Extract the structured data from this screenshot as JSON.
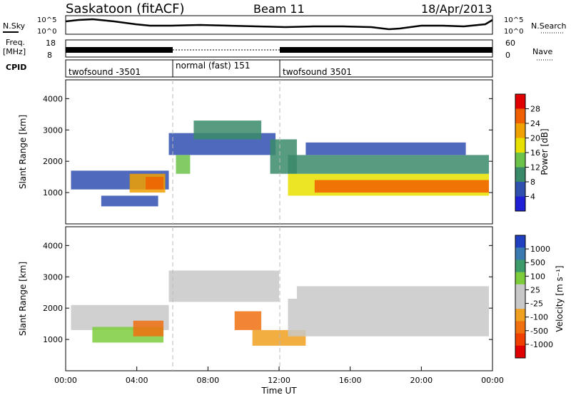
{
  "header": {
    "station": "Saskatoon (fitACF)",
    "beam": "Beam 11",
    "date": "18/Apr/2013"
  },
  "strips": {
    "nsky_label": "N.Sky",
    "nsky_ticks": [
      "10^5",
      "10^0"
    ],
    "nsearch_label": "N.Search",
    "nsearch_ticks": [
      "10^5",
      "10^0"
    ],
    "freq_label_1": "Freq.",
    "freq_label_2": "[MHz]",
    "freq_ticks": [
      "18",
      "8"
    ],
    "nave_label": "Nave",
    "nave_ticks": [
      "60",
      "0"
    ],
    "cpid_label": "CPID",
    "cpid_segments": [
      {
        "label": "twofsound -3501",
        "start": 0,
        "end": 6
      },
      {
        "label": "normal (fast) 151",
        "start": 6,
        "end": 12
      },
      {
        "label": "twofsound 3501",
        "start": 12,
        "end": 24
      }
    ]
  },
  "colors": {
    "power_scale": [
      "#1f1fd6",
      "#3050b0",
      "#3a8a6a",
      "#6cc24a",
      "#e8e000",
      "#f0a000",
      "#f06000",
      "#e00000"
    ],
    "velocity_scale": [
      "#2040c0",
      "#3a7ab0",
      "#3d9a6a",
      "#7ccc3c",
      "#c8c8c8",
      "#c8c8c8",
      "#f0a020",
      "#f07010",
      "#f04000",
      "#e00000"
    ]
  },
  "chart_data": [
    {
      "type": "heatmap",
      "panel": "power",
      "ylabel": "Slant Range [km]",
      "ylim": [
        0,
        4600
      ],
      "yticks": [
        "1000",
        "2000",
        "3000",
        "4000"
      ],
      "xlim": [
        0,
        24
      ],
      "colorbar_label": "Power [dB]",
      "colorbar_ticks": [
        "4",
        "8",
        "12",
        "16",
        "20",
        "24",
        "28"
      ],
      "bands": [
        {
          "x0": 0.3,
          "x1": 5.8,
          "y0": 1100,
          "y1": 1700,
          "value": 8
        },
        {
          "x0": 2.0,
          "x1": 5.2,
          "y0": 560,
          "y1": 900,
          "value": 8
        },
        {
          "x0": 3.6,
          "x1": 5.6,
          "y0": 1000,
          "y1": 1600,
          "value": 22
        },
        {
          "x0": 4.5,
          "x1": 5.5,
          "y0": 1100,
          "y1": 1500,
          "value": 28
        },
        {
          "x0": 5.8,
          "x1": 11.8,
          "y0": 2200,
          "y1": 2900,
          "value": 8
        },
        {
          "x0": 7.2,
          "x1": 11.0,
          "y0": 2700,
          "y1": 3300,
          "value": 10
        },
        {
          "x0": 6.2,
          "x1": 7.0,
          "y0": 1600,
          "y1": 2200,
          "value": 16
        },
        {
          "x0": 11.5,
          "x1": 13.0,
          "y0": 1600,
          "y1": 2700,
          "value": 10
        },
        {
          "x0": 12.5,
          "x1": 23.8,
          "y0": 900,
          "y1": 1600,
          "value": 20
        },
        {
          "x0": 14.0,
          "x1": 23.8,
          "y0": 1000,
          "y1": 1400,
          "value": 27
        },
        {
          "x0": 12.5,
          "x1": 23.8,
          "y0": 1600,
          "y1": 2200,
          "value": 12
        },
        {
          "x0": 13.5,
          "x1": 22.5,
          "y0": 2200,
          "y1": 2600,
          "value": 8
        }
      ]
    },
    {
      "type": "heatmap",
      "panel": "velocity",
      "ylabel": "Slant Range [km]",
      "ylim": [
        0,
        4600
      ],
      "yticks": [
        "1000",
        "2000",
        "3000",
        "4000"
      ],
      "xlim": [
        0,
        24
      ],
      "xticks": [
        "00:00",
        "04:00",
        "08:00",
        "12:00",
        "16:00",
        "20:00",
        "00:00"
      ],
      "xlabel": "Time UT",
      "colorbar_label": "Velocity [m s⁻¹]",
      "colorbar_ticks": [
        "1000",
        "500",
        "100",
        "25",
        "-25",
        "-100",
        "-500",
        "-1000"
      ],
      "bands": [
        {
          "x0": 0.3,
          "x1": 5.8,
          "y0": 1300,
          "y1": 2100,
          "value": 0
        },
        {
          "x0": 1.5,
          "x1": 5.5,
          "y0": 900,
          "y1": 1400,
          "value": 50
        },
        {
          "x0": 3.8,
          "x1": 5.5,
          "y0": 1100,
          "y1": 1600,
          "value": -150
        },
        {
          "x0": 5.8,
          "x1": 12.0,
          "y0": 2200,
          "y1": 3200,
          "value": 0
        },
        {
          "x0": 9.5,
          "x1": 11.0,
          "y0": 1300,
          "y1": 1900,
          "value": -300
        },
        {
          "x0": 10.5,
          "x1": 13.5,
          "y0": 800,
          "y1": 1300,
          "value": -80
        },
        {
          "x0": 12.5,
          "x1": 23.8,
          "y0": 1100,
          "y1": 2300,
          "value": 0
        },
        {
          "x0": 13.0,
          "x1": 23.8,
          "y0": 2300,
          "y1": 2700,
          "value": 0
        }
      ]
    }
  ]
}
